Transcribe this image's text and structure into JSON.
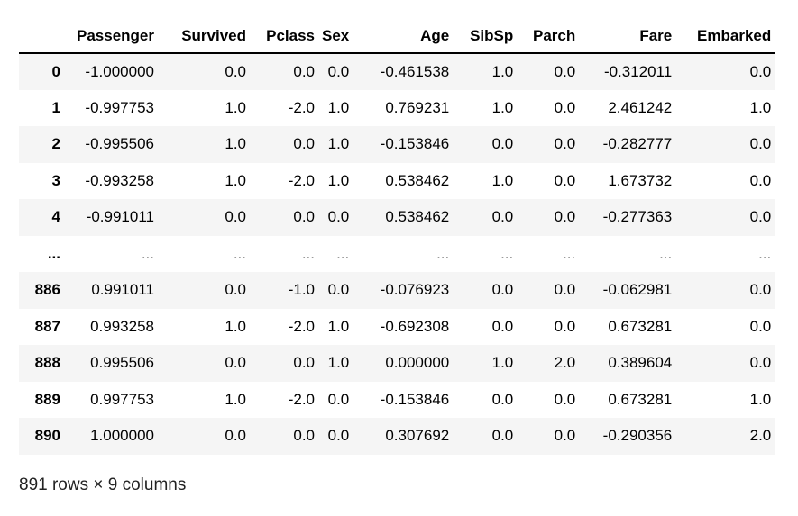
{
  "columns": [
    "Passenger",
    "Survived",
    "Pclass",
    "Sex",
    "Age",
    "SibSp",
    "Parch",
    "Fare",
    "Embarked"
  ],
  "index_header": "",
  "rows": [
    {
      "index": "0",
      "values": [
        "-1.000000",
        "0.0",
        "0.0",
        "0.0",
        "-0.461538",
        "1.0",
        "0.0",
        "-0.312011",
        "0.0"
      ]
    },
    {
      "index": "1",
      "values": [
        "-0.997753",
        "1.0",
        "-2.0",
        "1.0",
        "0.769231",
        "1.0",
        "0.0",
        "2.461242",
        "1.0"
      ]
    },
    {
      "index": "2",
      "values": [
        "-0.995506",
        "1.0",
        "0.0",
        "1.0",
        "-0.153846",
        "0.0",
        "0.0",
        "-0.282777",
        "0.0"
      ]
    },
    {
      "index": "3",
      "values": [
        "-0.993258",
        "1.0",
        "-2.0",
        "1.0",
        "0.538462",
        "1.0",
        "0.0",
        "1.673732",
        "0.0"
      ]
    },
    {
      "index": "4",
      "values": [
        "-0.991011",
        "0.0",
        "0.0",
        "0.0",
        "0.538462",
        "0.0",
        "0.0",
        "-0.277363",
        "0.0"
      ]
    },
    {
      "index": "...",
      "values": [
        "...",
        "...",
        "...",
        "...",
        "...",
        "...",
        "...",
        "...",
        "..."
      ]
    },
    {
      "index": "886",
      "values": [
        "0.991011",
        "0.0",
        "-1.0",
        "0.0",
        "-0.076923",
        "0.0",
        "0.0",
        "-0.062981",
        "0.0"
      ]
    },
    {
      "index": "887",
      "values": [
        "0.993258",
        "1.0",
        "-2.0",
        "1.0",
        "-0.692308",
        "0.0",
        "0.0",
        "0.673281",
        "0.0"
      ]
    },
    {
      "index": "888",
      "values": [
        "0.995506",
        "0.0",
        "0.0",
        "1.0",
        "0.000000",
        "1.0",
        "2.0",
        "0.389604",
        "0.0"
      ]
    },
    {
      "index": "889",
      "values": [
        "0.997753",
        "1.0",
        "-2.0",
        "0.0",
        "-0.153846",
        "0.0",
        "0.0",
        "0.673281",
        "1.0"
      ]
    },
    {
      "index": "890",
      "values": [
        "1.000000",
        "0.0",
        "0.0",
        "0.0",
        "0.307692",
        "0.0",
        "0.0",
        "-0.290356",
        "2.0"
      ]
    }
  ],
  "shape_text": "891 rows × 9 columns",
  "colors": {
    "stripe": "#f5f5f5",
    "header_border": "#000000",
    "ellipsis": "#808080"
  }
}
